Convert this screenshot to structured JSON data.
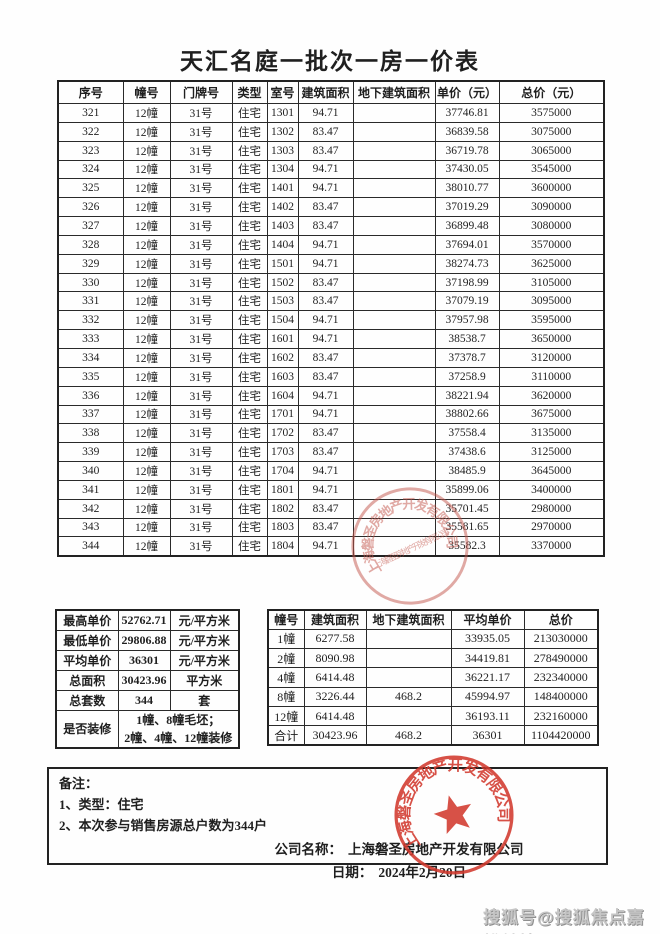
{
  "title": "天汇名庭一批次一房一价表",
  "main_table": {
    "headers": [
      "序号",
      "幢号",
      "门牌号",
      "类型",
      "室号",
      "建筑面积",
      "地下建筑面积",
      "单价（元）",
      "总价（元）"
    ],
    "rows": [
      [
        "321",
        "12幢",
        "31号",
        "住宅",
        "1301",
        "94.71",
        "",
        "37746.81",
        "3575000"
      ],
      [
        "322",
        "12幢",
        "31号",
        "住宅",
        "1302",
        "83.47",
        "",
        "36839.58",
        "3075000"
      ],
      [
        "323",
        "12幢",
        "31号",
        "住宅",
        "1303",
        "83.47",
        "",
        "36719.78",
        "3065000"
      ],
      [
        "324",
        "12幢",
        "31号",
        "住宅",
        "1304",
        "94.71",
        "",
        "37430.05",
        "3545000"
      ],
      [
        "325",
        "12幢",
        "31号",
        "住宅",
        "1401",
        "94.71",
        "",
        "38010.77",
        "3600000"
      ],
      [
        "326",
        "12幢",
        "31号",
        "住宅",
        "1402",
        "83.47",
        "",
        "37019.29",
        "3090000"
      ],
      [
        "327",
        "12幢",
        "31号",
        "住宅",
        "1403",
        "83.47",
        "",
        "36899.48",
        "3080000"
      ],
      [
        "328",
        "12幢",
        "31号",
        "住宅",
        "1404",
        "94.71",
        "",
        "37694.01",
        "3570000"
      ],
      [
        "329",
        "12幢",
        "31号",
        "住宅",
        "1501",
        "94.71",
        "",
        "38274.73",
        "3625000"
      ],
      [
        "330",
        "12幢",
        "31号",
        "住宅",
        "1502",
        "83.47",
        "",
        "37198.99",
        "3105000"
      ],
      [
        "331",
        "12幢",
        "31号",
        "住宅",
        "1503",
        "83.47",
        "",
        "37079.19",
        "3095000"
      ],
      [
        "332",
        "12幢",
        "31号",
        "住宅",
        "1504",
        "94.71",
        "",
        "37957.98",
        "3595000"
      ],
      [
        "333",
        "12幢",
        "31号",
        "住宅",
        "1601",
        "94.71",
        "",
        "38538.7",
        "3650000"
      ],
      [
        "334",
        "12幢",
        "31号",
        "住宅",
        "1602",
        "83.47",
        "",
        "37378.7",
        "3120000"
      ],
      [
        "335",
        "12幢",
        "31号",
        "住宅",
        "1603",
        "83.47",
        "",
        "37258.9",
        "3110000"
      ],
      [
        "336",
        "12幢",
        "31号",
        "住宅",
        "1604",
        "94.71",
        "",
        "38221.94",
        "3620000"
      ],
      [
        "337",
        "12幢",
        "31号",
        "住宅",
        "1701",
        "94.71",
        "",
        "38802.66",
        "3675000"
      ],
      [
        "338",
        "12幢",
        "31号",
        "住宅",
        "1702",
        "83.47",
        "",
        "37558.4",
        "3135000"
      ],
      [
        "339",
        "12幢",
        "31号",
        "住宅",
        "1703",
        "83.47",
        "",
        "37438.6",
        "3125000"
      ],
      [
        "340",
        "12幢",
        "31号",
        "住宅",
        "1704",
        "94.71",
        "",
        "38485.9",
        "3645000"
      ],
      [
        "341",
        "12幢",
        "31号",
        "住宅",
        "1801",
        "94.71",
        "",
        "35899.06",
        "3400000"
      ],
      [
        "342",
        "12幢",
        "31号",
        "住宅",
        "1802",
        "83.47",
        "",
        "35701.45",
        "2980000"
      ],
      [
        "343",
        "12幢",
        "31号",
        "住宅",
        "1803",
        "83.47",
        "",
        "35581.65",
        "2970000"
      ],
      [
        "344",
        "12幢",
        "31号",
        "住宅",
        "1804",
        "94.71",
        "",
        "35582.3",
        "3370000"
      ]
    ]
  },
  "summary_left": {
    "rows": [
      {
        "label": "最高单价",
        "value": "52762.71",
        "unit": "元/平方米"
      },
      {
        "label": "最低单价",
        "value": "29806.88",
        "unit": "元/平方米"
      },
      {
        "label": "平均单价",
        "value": "36301",
        "unit": "元/平方米"
      },
      {
        "label": "总面积",
        "value": "30423.96",
        "unit": "平方米"
      },
      {
        "label": "总套数",
        "value": "344",
        "unit": "套"
      }
    ],
    "decoration_row": {
      "label": "是否装修",
      "line1": "1幢、8幢毛坯；",
      "line2": "2幢、4幢、12幢装修"
    }
  },
  "summary_right": {
    "headers": [
      "幢号",
      "建筑面积",
      "地下建筑面积",
      "平均单价",
      "总价"
    ],
    "rows": [
      [
        "1幢",
        "6277.58",
        "",
        "33935.05",
        "213030000"
      ],
      [
        "2幢",
        "8090.98",
        "",
        "34419.81",
        "278490000"
      ],
      [
        "4幢",
        "6414.48",
        "",
        "36221.17",
        "232340000"
      ],
      [
        "8幢",
        "3226.44",
        "468.2",
        "45994.97",
        "148400000"
      ],
      [
        "12幢",
        "6414.48",
        "",
        "36193.11",
        "232160000"
      ],
      [
        "合计",
        "30423.96",
        "468.2",
        "36301",
        "1104420000"
      ]
    ]
  },
  "notes": {
    "heading": "备注：",
    "items": [
      "1、类型：住宅",
      "2、本次参与销售房源总户数为344户"
    ],
    "company_label": "公司名称：",
    "company_name": "上海磐圣房地产开发有限公司",
    "date_label": "日期：",
    "date_value": "2024年2月20日"
  },
  "stamp": {
    "company": "上海磐圣房地产开发有限公司",
    "color": "#d23a2e"
  },
  "watermark": "搜狐号@搜狐焦点嘉峪关站"
}
